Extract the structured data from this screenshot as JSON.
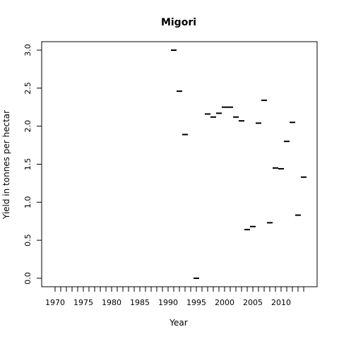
{
  "chart_data": {
    "type": "scatter",
    "marker": "horizontal-dash",
    "title": "Migori",
    "xlabel": "Year",
    "ylabel": "Yield in tonnes per hectar",
    "xlim": [
      1970,
      2014
    ],
    "ylim": [
      0,
      3.0
    ],
    "grid": false,
    "x_tick_values": [
      1970,
      1971,
      1972,
      1973,
      1974,
      1975,
      1976,
      1977,
      1978,
      1979,
      1980,
      1981,
      1982,
      1983,
      1984,
      1985,
      1986,
      1987,
      1988,
      1989,
      1990,
      1991,
      1992,
      1993,
      1994,
      1995,
      1996,
      1997,
      1998,
      1999,
      2000,
      2001,
      2002,
      2003,
      2004,
      2005,
      2006,
      2007,
      2008,
      2009,
      2010,
      2011,
      2012,
      2013,
      2014
    ],
    "x_tick_labels": [
      "1970",
      "1975",
      "1980",
      "1985",
      "1990",
      "1995",
      "2000",
      "2005",
      "2010"
    ],
    "x_tick_label_values": [
      1970,
      1975,
      1980,
      1985,
      1990,
      1995,
      2000,
      2005,
      2010
    ],
    "y_tick_labels": [
      "0.0",
      "0.5",
      "1.0",
      "1.5",
      "2.0",
      "2.5",
      "3.0"
    ],
    "y_tick_values": [
      0,
      0.5,
      1.0,
      1.5,
      2.0,
      2.5,
      3.0
    ],
    "points": [
      {
        "x": 1991,
        "y": 3.0
      },
      {
        "x": 1992,
        "y": 2.46
      },
      {
        "x": 1993,
        "y": 1.89
      },
      {
        "x": 1995,
        "y": 0.0
      },
      {
        "x": 1997,
        "y": 2.16
      },
      {
        "x": 1998,
        "y": 2.12
      },
      {
        "x": 1999,
        "y": 2.17
      },
      {
        "x": 2000,
        "y": 2.25
      },
      {
        "x": 2001,
        "y": 2.25
      },
      {
        "x": 2002,
        "y": 2.12
      },
      {
        "x": 2003,
        "y": 2.07
      },
      {
        "x": 2004,
        "y": 0.64
      },
      {
        "x": 2005,
        "y": 0.68
      },
      {
        "x": 2006,
        "y": 2.04
      },
      {
        "x": 2007,
        "y": 2.34
      },
      {
        "x": 2008,
        "y": 0.73
      },
      {
        "x": 2009,
        "y": 1.45
      },
      {
        "x": 2010,
        "y": 1.44
      },
      {
        "x": 2011,
        "y": 1.8
      },
      {
        "x": 2012,
        "y": 2.05
      },
      {
        "x": 2013,
        "y": 0.83
      },
      {
        "x": 2014,
        "y": 1.33
      }
    ]
  }
}
